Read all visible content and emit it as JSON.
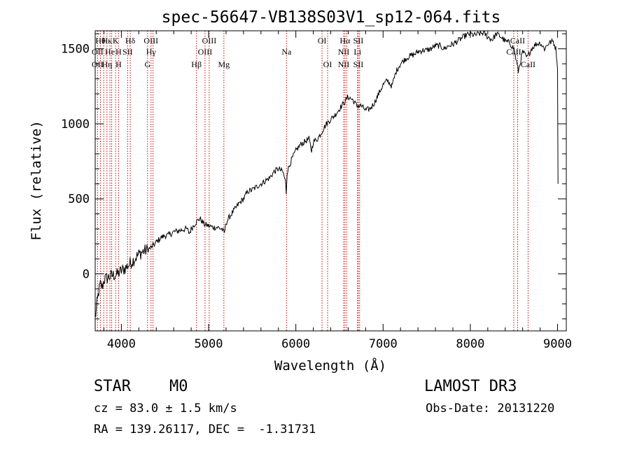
{
  "chart_data": {
    "type": "line",
    "title": "spec-56647-VB138S03V1_sp12-064.fits",
    "xlabel": "Wavelength (Å)",
    "ylabel": "Flux (relative)",
    "xlim": [
      3700,
      9100
    ],
    "ylim": [
      -380,
      1620
    ],
    "xticks": [
      4000,
      5000,
      6000,
      7000,
      8000,
      9000
    ],
    "yticks": [
      0,
      500,
      1000,
      1500
    ],
    "xtick_labels": [
      "4000",
      "5000",
      "6000",
      "7000",
      "8000",
      "9000"
    ],
    "ytick_labels": [
      "0",
      "500",
      "1000",
      "1500"
    ],
    "grid": false,
    "series": [
      {
        "color": "#000000",
        "points": [
          [
            3700,
            -300
          ],
          [
            3720,
            -200
          ],
          [
            3740,
            -120
          ],
          [
            3760,
            -70
          ],
          [
            3780,
            -90
          ],
          [
            3800,
            -40
          ],
          [
            3830,
            -30
          ],
          [
            3860,
            -20
          ],
          [
            3900,
            -10
          ],
          [
            3950,
            -5
          ],
          [
            4000,
            20
          ],
          [
            4050,
            40
          ],
          [
            4100,
            70
          ],
          [
            4150,
            100
          ],
          [
            4200,
            130
          ],
          [
            4250,
            150
          ],
          [
            4300,
            160
          ],
          [
            4350,
            180
          ],
          [
            4400,
            210
          ],
          [
            4450,
            240
          ],
          [
            4500,
            255
          ],
          [
            4550,
            260
          ],
          [
            4600,
            280
          ],
          [
            4650,
            285
          ],
          [
            4700,
            295
          ],
          [
            4750,
            300
          ],
          [
            4780,
            270
          ],
          [
            4800,
            300
          ],
          [
            4850,
            340
          ],
          [
            4900,
            370
          ],
          [
            4950,
            330
          ],
          [
            5000,
            320
          ],
          [
            5050,
            310
          ],
          [
            5100,
            310
          ],
          [
            5150,
            300
          ],
          [
            5180,
            270
          ],
          [
            5200,
            340
          ],
          [
            5250,
            390
          ],
          [
            5300,
            430
          ],
          [
            5350,
            470
          ],
          [
            5400,
            500
          ],
          [
            5450,
            550
          ],
          [
            5500,
            560
          ],
          [
            5550,
            580
          ],
          [
            5600,
            600
          ],
          [
            5650,
            620
          ],
          [
            5700,
            640
          ],
          [
            5750,
            680
          ],
          [
            5800,
            700
          ],
          [
            5850,
            680
          ],
          [
            5880,
            620
          ],
          [
            5890,
            540
          ],
          [
            5900,
            680
          ],
          [
            5950,
            760
          ],
          [
            6000,
            820
          ],
          [
            6050,
            860
          ],
          [
            6100,
            880
          ],
          [
            6150,
            900
          ],
          [
            6180,
            820
          ],
          [
            6200,
            880
          ],
          [
            6250,
            900
          ],
          [
            6300,
            950
          ],
          [
            6350,
            1000
          ],
          [
            6400,
            1030
          ],
          [
            6450,
            1060
          ],
          [
            6500,
            1100
          ],
          [
            6550,
            1140
          ],
          [
            6600,
            1180
          ],
          [
            6650,
            1160
          ],
          [
            6700,
            1120
          ],
          [
            6750,
            1120
          ],
          [
            6800,
            1090
          ],
          [
            6850,
            1100
          ],
          [
            6900,
            1140
          ],
          [
            6950,
            1200
          ],
          [
            7000,
            1260
          ],
          [
            7050,
            1290
          ],
          [
            7100,
            1250
          ],
          [
            7150,
            1350
          ],
          [
            7200,
            1400
          ],
          [
            7250,
            1430
          ],
          [
            7300,
            1450
          ],
          [
            7350,
            1460
          ],
          [
            7400,
            1480
          ],
          [
            7450,
            1490
          ],
          [
            7500,
            1490
          ],
          [
            7550,
            1500
          ],
          [
            7600,
            1520
          ],
          [
            7650,
            1520
          ],
          [
            7700,
            1500
          ],
          [
            7750,
            1520
          ],
          [
            7800,
            1530
          ],
          [
            7850,
            1550
          ],
          [
            7900,
            1570
          ],
          [
            7950,
            1590
          ],
          [
            8000,
            1600
          ],
          [
            8050,
            1590
          ],
          [
            8100,
            1600
          ],
          [
            8150,
            1605
          ],
          [
            8200,
            1580
          ],
          [
            8250,
            1560
          ],
          [
            8300,
            1600
          ],
          [
            8350,
            1580
          ],
          [
            8400,
            1550
          ],
          [
            8450,
            1540
          ],
          [
            8500,
            1500
          ],
          [
            8550,
            1350
          ],
          [
            8600,
            1480
          ],
          [
            8650,
            1440
          ],
          [
            8700,
            1500
          ],
          [
            8750,
            1530
          ],
          [
            8800,
            1540
          ],
          [
            8850,
            1500
          ],
          [
            8900,
            1540
          ],
          [
            8950,
            1550
          ],
          [
            8980,
            1500
          ],
          [
            9000,
            1380
          ],
          [
            9005,
            600
          ]
        ]
      }
    ],
    "line_color": "#cc0000",
    "lines": [
      {
        "x": 3727,
        "labels": [
          {
            "text": "OII",
            "row": 1
          },
          {
            "text": "OII",
            "row": 2
          }
        ]
      },
      {
        "x": 3760,
        "labels": [
          {
            "text": "Hθ",
            "row": 0
          }
        ]
      },
      {
        "x": 3798,
        "labels": []
      },
      {
        "x": 3835,
        "labels": [
          {
            "text": "Hη",
            "row": 2
          },
          {
            "text": "Hκ",
            "row": 0
          }
        ]
      },
      {
        "x": 3869,
        "labels": [
          {
            "text": "He",
            "row": 1
          }
        ]
      },
      {
        "x": 3889,
        "labels": []
      },
      {
        "x": 3934,
        "labels": [
          {
            "text": "K",
            "row": 0
          }
        ]
      },
      {
        "x": 3968,
        "labels": [
          {
            "text": "H",
            "row": 2
          },
          {
            "text": "H",
            "row": 1
          }
        ]
      },
      {
        "x": 4072,
        "labels": [
          {
            "text": "SII",
            "row": 1
          }
        ]
      },
      {
        "x": 4102,
        "labels": [
          {
            "text": "Hδ",
            "row": 0
          }
        ]
      },
      {
        "x": 4300,
        "labels": [
          {
            "text": "G",
            "row": 2
          }
        ]
      },
      {
        "x": 4340,
        "labels": [
          {
            "text": "Hγ",
            "row": 1
          },
          {
            "text": "OIII",
            "row": 0
          }
        ]
      },
      {
        "x": 4363,
        "labels": []
      },
      {
        "x": 4861,
        "labels": [
          {
            "text": "Hβ",
            "row": 2
          }
        ]
      },
      {
        "x": 4959,
        "labels": [
          {
            "text": "OIII",
            "row": 1
          }
        ]
      },
      {
        "x": 5007,
        "labels": [
          {
            "text": "OIII",
            "row": 0
          }
        ]
      },
      {
        "x": 5175,
        "labels": [
          {
            "text": "Mg",
            "row": 2
          }
        ]
      },
      {
        "x": 5893,
        "labels": [
          {
            "text": "Na",
            "row": 1
          }
        ]
      },
      {
        "x": 6300,
        "labels": [
          {
            "text": "OI",
            "row": 0
          }
        ]
      },
      {
        "x": 6364,
        "labels": [
          {
            "text": "OI",
            "row": 2
          }
        ]
      },
      {
        "x": 6548,
        "labels": [
          {
            "text": "NII",
            "row": 1
          },
          {
            "text": "NII",
            "row": 2
          }
        ]
      },
      {
        "x": 6563,
        "labels": [
          {
            "text": "Hα",
            "row": 0
          }
        ]
      },
      {
        "x": 6583,
        "labels": []
      },
      {
        "x": 6707,
        "labels": [
          {
            "text": "Li",
            "row": 1
          }
        ]
      },
      {
        "x": 6716,
        "labels": [
          {
            "text": "SII",
            "row": 0
          },
          {
            "text": "SII",
            "row": 2
          }
        ]
      },
      {
        "x": 6731,
        "labels": []
      },
      {
        "x": 8498,
        "labels": [
          {
            "text": "CaII",
            "row": 1
          }
        ]
      },
      {
        "x": 8542,
        "labels": [
          {
            "text": "CaII",
            "row": 0
          }
        ]
      },
      {
        "x": 8662,
        "labels": [
          {
            "text": "CaII",
            "row": 2
          }
        ]
      }
    ]
  },
  "info": {
    "object_class": "STAR",
    "subclass": "M0",
    "survey": "LAMOST DR3",
    "redshift": "cz = 83.0 ± 1.5 km/s",
    "obs_date": "Obs-Date: 20131220",
    "coords": "RA = 139.26117, DEC =  -1.31731"
  }
}
